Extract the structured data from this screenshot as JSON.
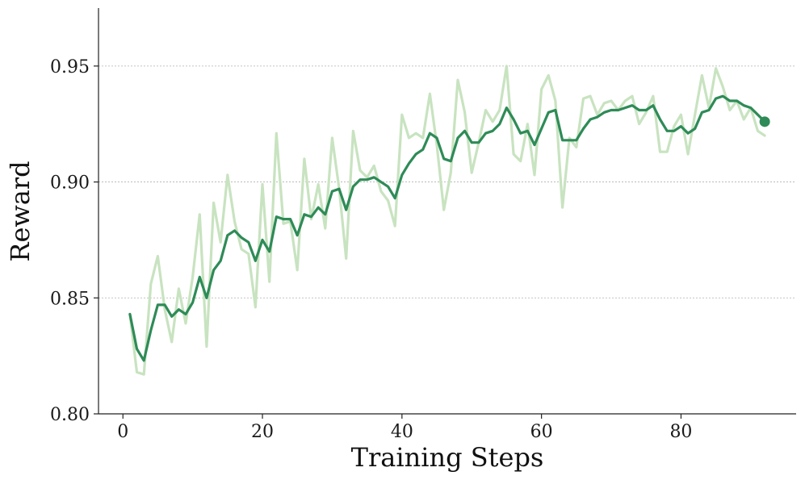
{
  "chart_data": {
    "type": "line",
    "title": "",
    "xlabel": "Training Steps",
    "ylabel": "Reward",
    "xlim": [
      -3.5,
      96.5
    ],
    "ylim": [
      0.8,
      0.975
    ],
    "xticks": [
      0,
      20,
      40,
      60,
      80
    ],
    "xtick_labels": [
      "0",
      "20",
      "40",
      "60",
      "80"
    ],
    "yticks": [
      0.8,
      0.85,
      0.9,
      0.95
    ],
    "ytick_labels": [
      "0.80",
      "0.85",
      "0.90",
      "0.95"
    ],
    "grid": "horizontal dashed",
    "legend": "none",
    "x": [
      1,
      2,
      3,
      4,
      5,
      6,
      7,
      8,
      9,
      10,
      11,
      12,
      13,
      14,
      15,
      16,
      17,
      18,
      19,
      20,
      21,
      22,
      23,
      24,
      25,
      26,
      27,
      28,
      29,
      30,
      31,
      32,
      33,
      34,
      35,
      36,
      37,
      38,
      39,
      40,
      41,
      42,
      43,
      44,
      45,
      46,
      47,
      48,
      49,
      50,
      51,
      52,
      53,
      54,
      55,
      56,
      57,
      58,
      59,
      60,
      61,
      62,
      63,
      64,
      65,
      66,
      67,
      68,
      69,
      70,
      71,
      72,
      73,
      74,
      75,
      76,
      77,
      78,
      79,
      80,
      81,
      82,
      83,
      84,
      85,
      86,
      87,
      88,
      89,
      90,
      91,
      92
    ],
    "series": [
      {
        "role": "raw",
        "color": "#c8e3c0",
        "values": [
          0.843,
          0.818,
          0.817,
          0.856,
          0.868,
          0.845,
          0.831,
          0.854,
          0.839,
          0.859,
          0.886,
          0.829,
          0.891,
          0.874,
          0.903,
          0.883,
          0.871,
          0.869,
          0.846,
          0.899,
          0.857,
          0.921,
          0.882,
          0.883,
          0.862,
          0.91,
          0.884,
          0.899,
          0.88,
          0.919,
          0.897,
          0.867,
          0.922,
          0.905,
          0.902,
          0.907,
          0.896,
          0.892,
          0.881,
          0.929,
          0.919,
          0.921,
          0.919,
          0.938,
          0.916,
          0.888,
          0.904,
          0.944,
          0.93,
          0.904,
          0.917,
          0.931,
          0.926,
          0.931,
          0.95,
          0.912,
          0.909,
          0.925,
          0.903,
          0.94,
          0.946,
          0.935,
          0.889,
          0.919,
          0.915,
          0.936,
          0.937,
          0.929,
          0.934,
          0.935,
          0.931,
          0.935,
          0.937,
          0.925,
          0.93,
          0.937,
          0.913,
          0.913,
          0.924,
          0.929,
          0.912,
          0.929,
          0.946,
          0.932,
          0.949,
          0.941,
          0.931,
          0.935,
          0.927,
          0.932,
          0.922,
          0.92
        ]
      },
      {
        "role": "smoothed",
        "color": "#2e8b57",
        "values": [
          0.843,
          0.828,
          0.823,
          0.836,
          0.847,
          0.847,
          0.842,
          0.845,
          0.843,
          0.848,
          0.859,
          0.85,
          0.862,
          0.866,
          0.877,
          0.879,
          0.876,
          0.874,
          0.866,
          0.875,
          0.87,
          0.885,
          0.884,
          0.884,
          0.877,
          0.886,
          0.885,
          0.889,
          0.886,
          0.896,
          0.897,
          0.888,
          0.898,
          0.901,
          0.901,
          0.902,
          0.9,
          0.898,
          0.893,
          0.903,
          0.908,
          0.912,
          0.914,
          0.921,
          0.919,
          0.91,
          0.909,
          0.919,
          0.922,
          0.917,
          0.917,
          0.921,
          0.922,
          0.925,
          0.932,
          0.927,
          0.921,
          0.922,
          0.916,
          0.923,
          0.93,
          0.931,
          0.918,
          0.918,
          0.918,
          0.923,
          0.927,
          0.928,
          0.93,
          0.931,
          0.931,
          0.932,
          0.933,
          0.931,
          0.931,
          0.933,
          0.927,
          0.922,
          0.922,
          0.924,
          0.921,
          0.923,
          0.93,
          0.931,
          0.936,
          0.937,
          0.935,
          0.935,
          0.933,
          0.932,
          0.929,
          0.926
        ]
      }
    ],
    "end_marker": {
      "x": 92,
      "y": 0.926,
      "color": "#2e8b57"
    }
  }
}
